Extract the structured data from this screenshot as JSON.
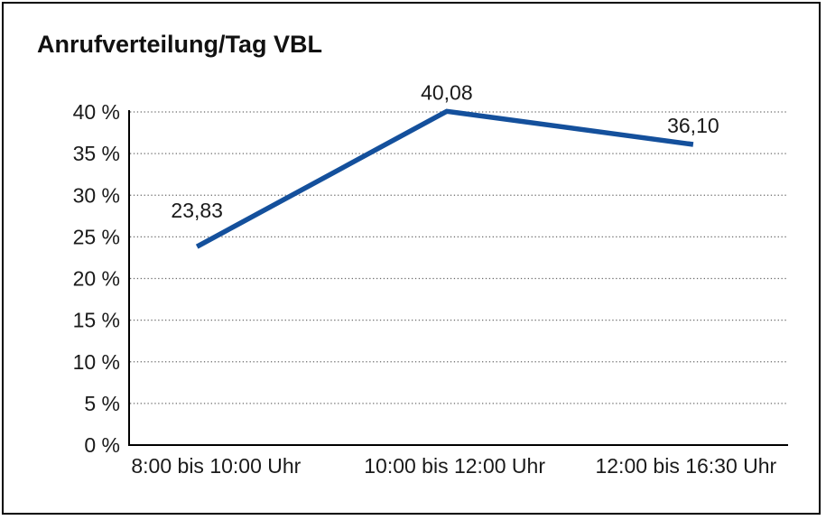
{
  "page": {
    "title": "Anrufverteilung/Tag VBL"
  },
  "chart_data": {
    "type": "line",
    "title": "Anrufverteilung/Tag VBL",
    "categories": [
      "8:00 bis 10:00 Uhr",
      "10:00 bis 12:00 Uhr",
      "12:00 bis 16:30 Uhr"
    ],
    "values": [
      23.83,
      40.08,
      36.1
    ],
    "data_labels": [
      "23,83",
      "40,08",
      "36,10"
    ],
    "ytick_labels": [
      "0 %",
      "5 %",
      "10 %",
      "15 %",
      "20 %",
      "25 %",
      "30 %",
      "35 %",
      "40 %"
    ],
    "ylim": [
      0,
      40
    ],
    "ytick_step": 5,
    "xlabel": "",
    "ylabel": "",
    "grid": "horizontal-dotted",
    "legend": "none",
    "line_color": "#14509c",
    "axis_color": "#000000",
    "gridline_color": "#6b6b6b",
    "text_color": "#1a1a1a"
  }
}
